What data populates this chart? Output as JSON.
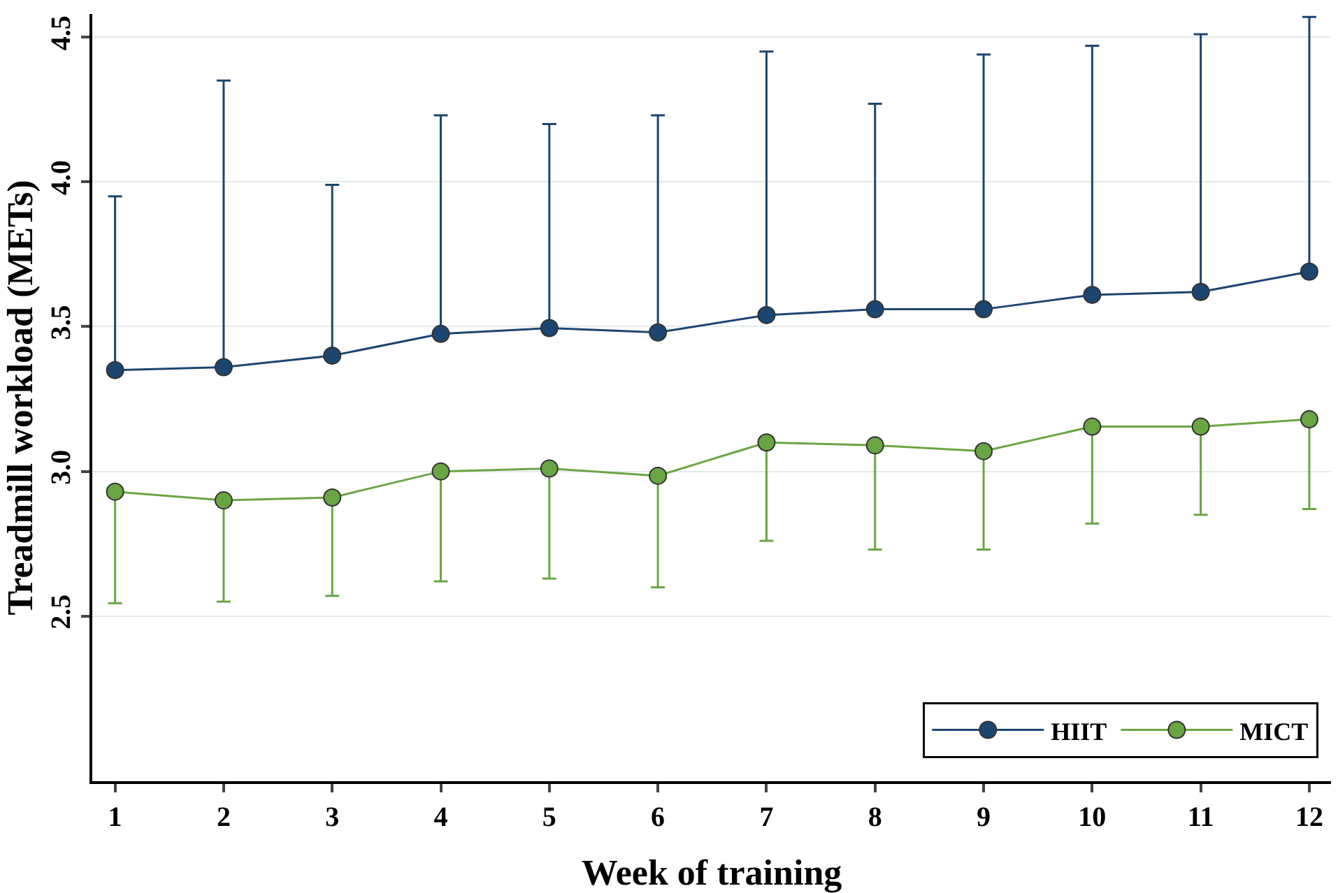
{
  "chart_data": {
    "type": "line",
    "xlabel": "Week of training",
    "ylabel": "Treadmill workload (METs)",
    "x": [
      1,
      2,
      3,
      4,
      5,
      6,
      7,
      8,
      9,
      10,
      11,
      12
    ],
    "xlim": [
      0.79,
      12.2
    ],
    "xticks": [
      1,
      2,
      3,
      4,
      5,
      6,
      7,
      8,
      9,
      10,
      11,
      12
    ],
    "ylim": [
      1.93,
      4.58
    ],
    "yticks": [
      2.5,
      {
        "value": 3,
        "label": "3.0"
      },
      3.5,
      {
        "value": 4,
        "label": "4.0"
      },
      4.5
    ],
    "grid": "y",
    "legend": "bottom right",
    "marker": "circle",
    "line_style": "solid",
    "series": [
      {
        "name": "HIIT",
        "color": "#1c4570",
        "values": [
          3.35,
          3.36,
          3.4,
          3.475,
          3.495,
          3.48,
          3.54,
          3.56,
          3.56,
          3.61,
          3.62,
          3.69
        ],
        "errors": [
          [
            3.35,
            3.95
          ],
          [
            3.36,
            4.35
          ],
          [
            3.4,
            3.99
          ],
          [
            3.475,
            4.23
          ],
          [
            3.495,
            4.2
          ],
          [
            3.48,
            4.23
          ],
          [
            3.54,
            4.45
          ],
          [
            3.56,
            4.27
          ],
          [
            3.56,
            4.44
          ],
          [
            3.61,
            4.47
          ],
          [
            3.62,
            4.51
          ],
          [
            3.69,
            4.57
          ]
        ]
      },
      {
        "name": "MICT",
        "color": "#6aa544",
        "values": [
          2.93,
          2.9,
          2.91,
          3.0,
          3.01,
          2.985,
          3.1,
          3.09,
          3.07,
          3.155,
          3.155,
          3.18
        ],
        "errors": [
          [
            2.545,
            2.93
          ],
          [
            2.55,
            2.9
          ],
          [
            2.57,
            2.91
          ],
          [
            2.62,
            3.0
          ],
          [
            2.63,
            3.01
          ],
          [
            2.6,
            2.985
          ],
          [
            2.76,
            3.1
          ],
          [
            2.73,
            3.09
          ],
          [
            2.73,
            3.07
          ],
          [
            2.82,
            3.155
          ],
          [
            2.85,
            3.155
          ],
          [
            2.87,
            3.18
          ]
        ]
      }
    ]
  }
}
